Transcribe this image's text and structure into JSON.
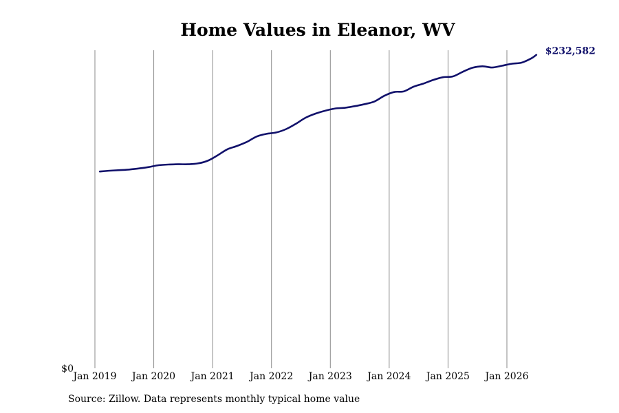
{
  "chart_data": {
    "type": "line",
    "title": "Home Values in Eleanor, WV",
    "xlabel": "",
    "ylabel": "",
    "x_ticks": [
      "Jan 2019",
      "Jan 2020",
      "Jan 2021",
      "Jan 2022",
      "Jan 2023",
      "Jan 2024",
      "Jan 2025",
      "Jan 2026"
    ],
    "y_ticks": [
      "$0"
    ],
    "ylim": [
      0,
      236000
    ],
    "grid": "vertical",
    "legend": "none",
    "line_color": "#11116b",
    "end_label": "$232,582",
    "series": [
      {
        "x": [
          "2019-02",
          "2019-04",
          "2019-06",
          "2019-08",
          "2019-10",
          "2019-12",
          "2020-02",
          "2020-04",
          "2020-06",
          "2020-08",
          "2020-10",
          "2020-12",
          "2021-02",
          "2021-04",
          "2021-06",
          "2021-08",
          "2021-10",
          "2021-12",
          "2022-02",
          "2022-04",
          "2022-06",
          "2022-08",
          "2022-10",
          "2022-12",
          "2023-02",
          "2023-04",
          "2023-06",
          "2023-08",
          "2023-10",
          "2023-12",
          "2024-02",
          "2024-04",
          "2024-06",
          "2024-08",
          "2024-10",
          "2024-12",
          "2025-02",
          "2025-04",
          "2025-06",
          "2025-08",
          "2025-10",
          "2025-12",
          "2026-02",
          "2026-04",
          "2026-06",
          "2026-07"
        ],
        "y": [
          146000,
          146600,
          147000,
          147500,
          148300,
          149300,
          150700,
          151200,
          151400,
          151400,
          152000,
          154000,
          158000,
          162500,
          165000,
          168000,
          172000,
          174000,
          175000,
          177500,
          181500,
          186000,
          189000,
          191200,
          192800,
          193300,
          194500,
          196000,
          198000,
          202200,
          205000,
          205500,
          209000,
          211300,
          214000,
          216000,
          216600,
          220000,
          223000,
          224100,
          223200,
          224500,
          226000,
          226800,
          230000,
          232582
        ]
      }
    ]
  },
  "source_note": "Source: Zillow. Data represents monthly typical home value"
}
